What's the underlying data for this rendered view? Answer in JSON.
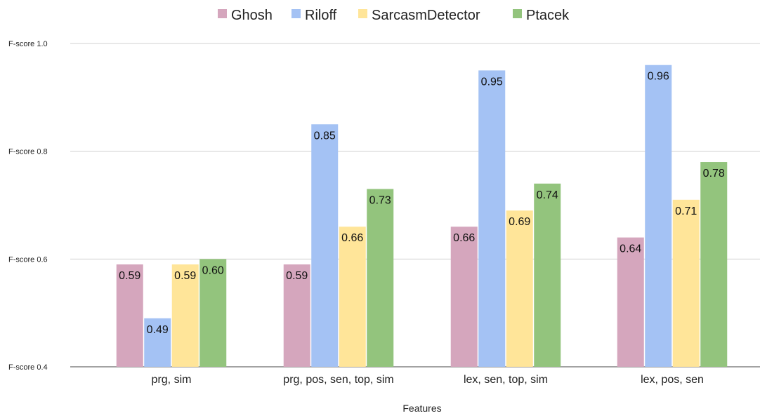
{
  "chart_data": {
    "type": "bar",
    "categories": [
      "prg, sim",
      "prg, pos, sen, top, sim",
      "lex, sen, top, sim",
      "lex, pos, sen"
    ],
    "series": [
      {
        "name": "Ghosh",
        "color": "#d5a6bd",
        "values": [
          0.59,
          0.59,
          0.66,
          0.64
        ],
        "labels": [
          "0.59",
          "0.59",
          "0.66",
          "0.64"
        ]
      },
      {
        "name": "Riloff",
        "color": "#a4c2f4",
        "values": [
          0.49,
          0.85,
          0.95,
          0.96
        ],
        "labels": [
          "0.49",
          "0.85",
          "0.95",
          "0.96"
        ]
      },
      {
        "name": "SarcasmDetector",
        "color": "#ffe599",
        "values": [
          0.59,
          0.66,
          0.69,
          0.71
        ],
        "labels": [
          "0.59",
          "0.66",
          "0.69",
          "0.71"
        ]
      },
      {
        "name": "Ptacek",
        "color": "#93c47d",
        "values": [
          0.6,
          0.73,
          0.74,
          0.78
        ],
        "labels": [
          "0.60",
          "0.73",
          "0.74",
          "0.78"
        ]
      }
    ],
    "yticks": [
      {
        "value": 0.4,
        "label": "F-score 0.4"
      },
      {
        "value": 0.6,
        "label": "F-score 0.6"
      },
      {
        "value": 0.8,
        "label": "F-score 0.8"
      },
      {
        "value": 1.0,
        "label": "F-score 1.0"
      }
    ],
    "ylim": [
      0.4,
      1.0
    ],
    "xlabel": "Features",
    "ylabel": "",
    "title": "",
    "legend_position": "top-center",
    "grid": true
  }
}
